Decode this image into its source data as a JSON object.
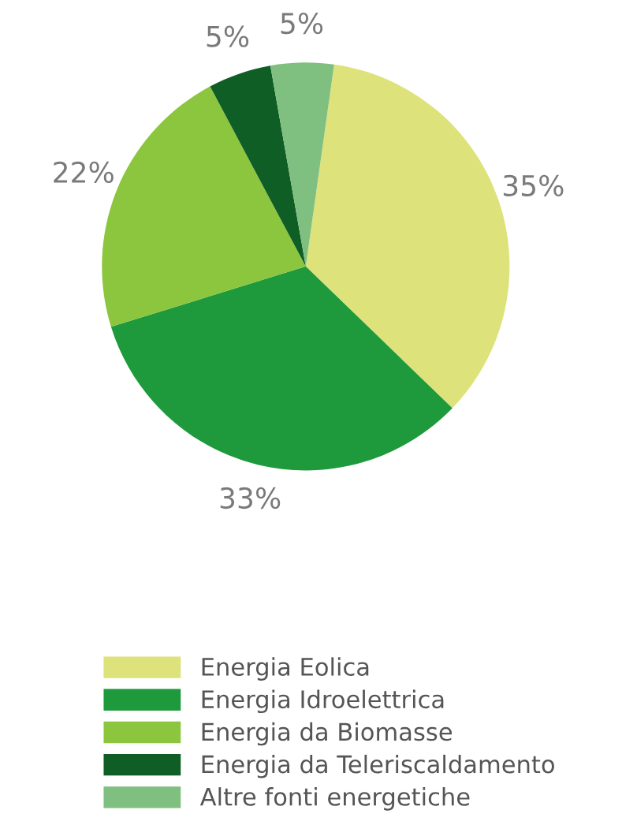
{
  "chart_data": {
    "type": "pie",
    "categories": [
      "Energia Eolica",
      "Energia Idroelettrica",
      "Energia da Biomasse",
      "Energia da Teleriscaldamento",
      "Altre fonti energetiche"
    ],
    "values": [
      35,
      33,
      22,
      5,
      5
    ],
    "colors": [
      "#dde27a",
      "#1e9a3c",
      "#8cc63f",
      "#0f5e25",
      "#7fbf7f"
    ],
    "value_labels": [
      "35%",
      "33%",
      "22%",
      "5%",
      "5%"
    ],
    "legend": "bottom"
  }
}
